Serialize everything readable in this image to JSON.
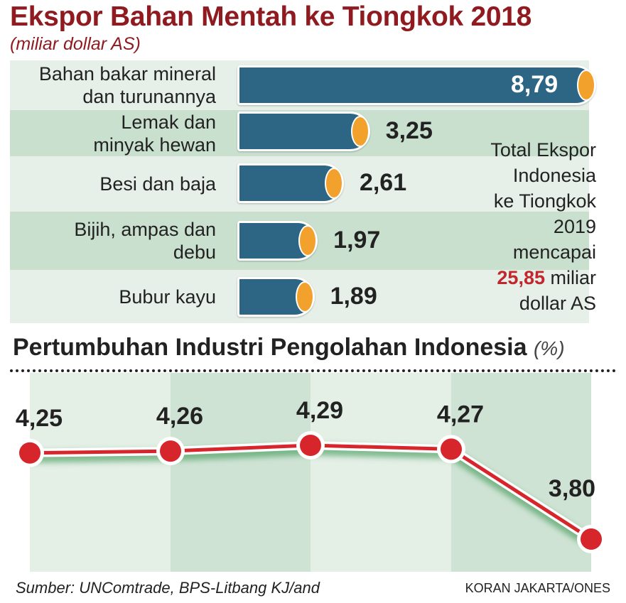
{
  "chart_data": [
    {
      "type": "bar",
      "orientation": "horizontal",
      "title": "Ekspor Bahan Mentah ke Tiongkok 2018",
      "subtitle": "(miliar dollar AS)",
      "categories": [
        [
          "Bahan bakar mineral",
          "dan turunannya"
        ],
        [
          "Lemak dan",
          "minyak hewan"
        ],
        [
          "Besi dan baja"
        ],
        [
          "Bijih, ampas dan",
          "debu"
        ],
        [
          "Bubur kayu"
        ]
      ],
      "values": [
        8.79,
        3.25,
        2.61,
        1.97,
        1.89
      ],
      "value_labels": [
        "8,79",
        "3,25",
        "2,61",
        "1,97",
        "1,89"
      ],
      "colors": {
        "bar": "#2d6584",
        "cap": "#f2a12d",
        "band_light": "#e6f0e8",
        "band_dark": "#c9e0cf"
      },
      "annotation": {
        "lines": [
          "Total Ekspor",
          "Indonesia",
          "ke Tiongkok",
          "2019",
          "mencapai"
        ],
        "highlight": "25,85",
        "after_highlight": "miliar",
        "last_line": "dollar AS",
        "highlight_color": "#c1272d"
      }
    },
    {
      "type": "line",
      "title": "Pertumbuhan Industri Pengolahan Indonesia",
      "unit": "(%)",
      "values": [
        4.25,
        4.26,
        4.29,
        4.27,
        3.8
      ],
      "value_labels": [
        "4,25",
        "4,26",
        "4,29",
        "4,27",
        "3,80"
      ],
      "colors": {
        "line": "#d7262b",
        "marker": "#d7262b",
        "glow": "#2f8f49"
      }
    }
  ],
  "footer": {
    "source": "Sumber: UNComtrade, BPS-Litbang KJ/and",
    "credit": "KORAN JAKARTA/ONES"
  }
}
